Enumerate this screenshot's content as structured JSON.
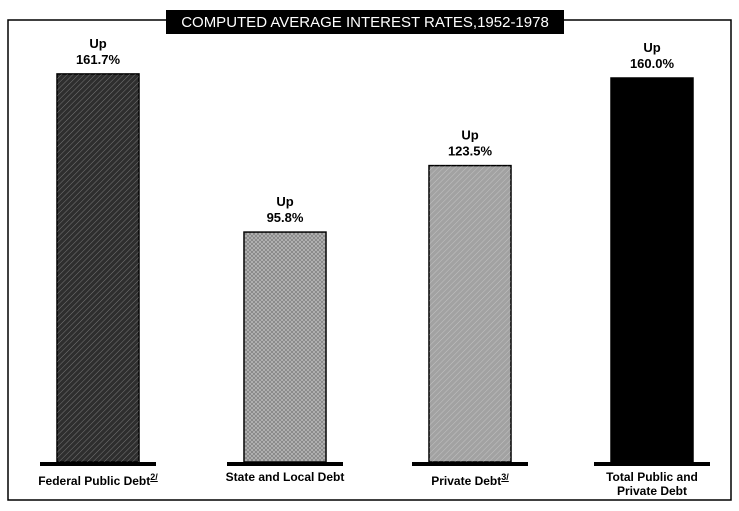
{
  "chart_data": {
    "type": "bar",
    "title": "COMPUTED AVERAGE INTEREST RATES,1952-1978",
    "categories": [
      "Federal Public Debt",
      "State and Local Debt",
      "Private Debt",
      "Total Public and Private Debt"
    ],
    "category_footnotes": [
      "2/",
      null,
      "3/",
      null
    ],
    "values": [
      161.7,
      95.8,
      123.5,
      160.0
    ],
    "value_labels": [
      [
        "Up",
        "161.7%"
      ],
      [
        "Up",
        "95.8%"
      ],
      [
        "Up",
        "123.5%"
      ],
      [
        "Up",
        "160.0%"
      ]
    ],
    "colors": [
      "#2e2e2e",
      "#b4b4b4",
      "#a2a2a2",
      "#000000"
    ],
    "ylim": [
      0,
      170
    ]
  }
}
